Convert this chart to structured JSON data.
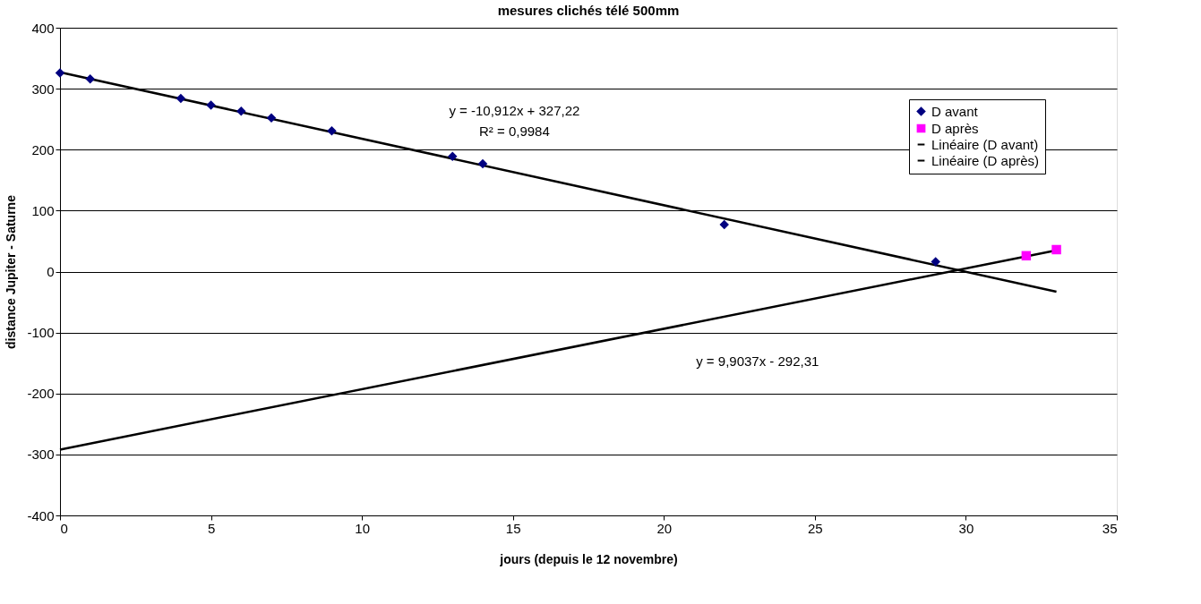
{
  "chart_data": {
    "type": "scatter",
    "title": "mesures clichés télé 500mm",
    "xlabel": "jours (depuis le 12 novembre)",
    "ylabel": "distance Jupiter - Saturne",
    "xlim": [
      0,
      35
    ],
    "xticks": [
      0,
      5,
      10,
      15,
      20,
      25,
      30,
      35
    ],
    "ylim": [
      -400,
      400
    ],
    "yticks": [
      -400,
      -300,
      -200,
      -100,
      0,
      100,
      200,
      300,
      400
    ],
    "grid": "y",
    "legend": "top right",
    "series": [
      {
        "name": "D avant",
        "marker": "diamond",
        "color": "#000080",
        "x": [
          0,
          1,
          4,
          5,
          6,
          7,
          9,
          13,
          14,
          22,
          29
        ],
        "values": [
          326,
          316,
          284,
          273,
          263,
          252,
          231,
          189,
          177,
          77,
          16
        ]
      },
      {
        "name": "D après",
        "marker": "square",
        "color": "#ff00ff",
        "x": [
          32,
          33
        ],
        "values": [
          26,
          36
        ]
      },
      {
        "name": "Linéaire (D avant)",
        "type": "line",
        "marker": "none",
        "color": "#000000",
        "x": [
          0,
          33
        ],
        "values": [
          327,
          -33
        ]
      },
      {
        "name": "Linéaire (D après)",
        "type": "line",
        "marker": "none",
        "color": "#000000",
        "x": [
          0,
          33
        ],
        "values": [
          -292,
          35
        ]
      }
    ],
    "annotations": [
      "y = -10,912x + 327,22",
      "R² = 0,9984",
      "y = 9,9037x - 292,31"
    ]
  }
}
